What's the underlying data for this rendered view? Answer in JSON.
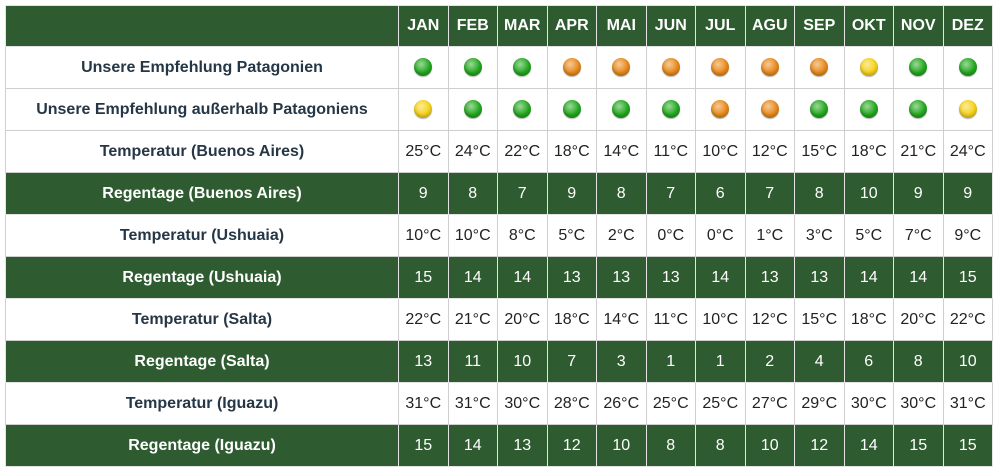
{
  "table": {
    "header": [
      "JAN",
      "FEB",
      "MAR",
      "APR",
      "MAI",
      "JUN",
      "JUL",
      "AGU",
      "SEP",
      "OKT",
      "NOV",
      "DEZ"
    ],
    "rows": [
      {
        "label": "Unsere Empfehlung Patagonien",
        "ratings": [
          "#22a81e",
          "#22a81e",
          "#22a81e",
          "#e8891a",
          "#e8891a",
          "#e8891a",
          "#e8891a",
          "#e8891a",
          "#e8891a",
          "#f5d21a",
          "#22a81e",
          "#22a81e"
        ]
      },
      {
        "label": "Unsere Empfehlung außerhalb Patagoniens",
        "ratings": [
          "#f5d21a",
          "#22a81e",
          "#22a81e",
          "#22a81e",
          "#22a81e",
          "#22a81e",
          "#e8891a",
          "#e8891a",
          "#22a81e",
          "#22a81e",
          "#22a81e",
          "#f5d21a"
        ]
      },
      {
        "label": "Temperatur (Buenos Aires)",
        "cells": [
          "25°C",
          "24°C",
          "22°C",
          "18°C",
          "14°C",
          "11°C",
          "10°C",
          "12°C",
          "15°C",
          "18°C",
          "21°C",
          "24°C"
        ]
      },
      {
        "label": "Regentage (Buenos Aires)",
        "cells": [
          9,
          8,
          7,
          9,
          8,
          7,
          6,
          7,
          8,
          10,
          9,
          9
        ]
      },
      {
        "label": "Temperatur (Ushuaia)",
        "cells": [
          "10°C",
          "10°C",
          "8°C",
          "5°C",
          "2°C",
          "0°C",
          "0°C",
          "1°C",
          "3°C",
          "5°C",
          "7°C",
          "9°C"
        ]
      },
      {
        "label": "Regentage (Ushuaia)",
        "cells": [
          15,
          14,
          14,
          13,
          13,
          13,
          14,
          13,
          13,
          14,
          14,
          15
        ]
      },
      {
        "label": "Temperatur (Salta)",
        "cells": [
          "22°C",
          "21°C",
          "20°C",
          "18°C",
          "14°C",
          "11°C",
          "10°C",
          "12°C",
          "15°C",
          "18°C",
          "20°C",
          "22°C"
        ]
      },
      {
        "label": "Regentage (Salta)",
        "cells": [
          13,
          11,
          10,
          7,
          3,
          1,
          1,
          2,
          4,
          6,
          8,
          10
        ]
      },
      {
        "label": "Temperatur (Iguazu)",
        "cells": [
          "31°C",
          "31°C",
          "30°C",
          "28°C",
          "26°C",
          "25°C",
          "25°C",
          "27°C",
          "29°C",
          "30°C",
          "30°C",
          "31°C"
        ]
      },
      {
        "label": "Regentage (Iguazu)",
        "cells": [
          15,
          14,
          13,
          12,
          10,
          8,
          8,
          10,
          12,
          14,
          15,
          15
        ]
      }
    ]
  }
}
